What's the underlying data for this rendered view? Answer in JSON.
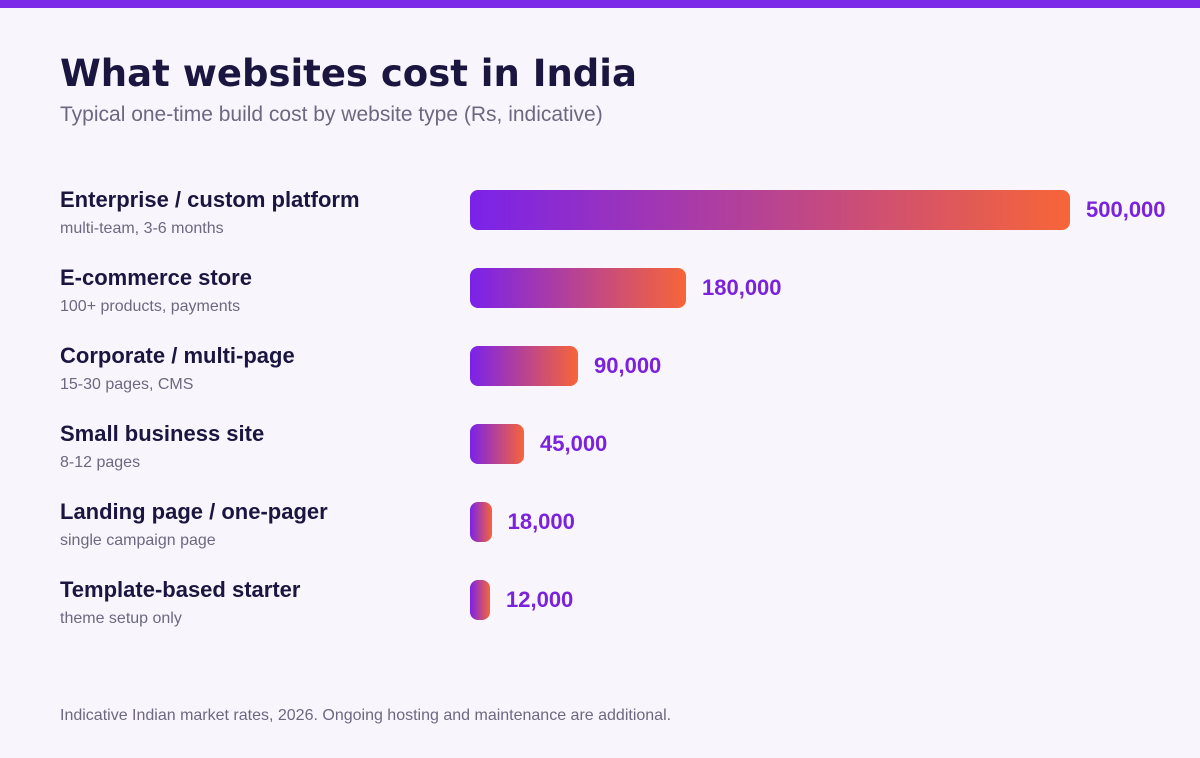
{
  "colors": {
    "accent": "#7c2ae8",
    "gradient_start": "#7a22ea",
    "gradient_end": "#f76538",
    "value_text": "#7a22dc",
    "title_text": "#1b1640",
    "muted_text": "#6c6880",
    "background": "#f8f6fc"
  },
  "chart_data": {
    "type": "bar",
    "orientation": "horizontal",
    "title": "What websites cost in India",
    "subtitle": "Typical one-time build cost by website type (Rs, indicative)",
    "categories": [
      "Enterprise / custom platform",
      "E-commerce store",
      "Corporate / multi-page",
      "Small business site",
      "Landing page / one-pager",
      "Template-based starter"
    ],
    "descriptions": [
      "multi-team, 3-6 months",
      "100+ products, payments",
      "15-30 pages, CMS",
      "8-12 pages",
      "single campaign page",
      "theme setup only"
    ],
    "values": [
      500000,
      180000,
      90000,
      45000,
      18000,
      12000
    ],
    "value_labels": [
      "500,000",
      "180,000",
      "90,000",
      "45,000",
      "18,000",
      "12,000"
    ],
    "xlim": [
      0,
      500000
    ],
    "grid": false,
    "legend": "none",
    "footnote": "Indicative Indian market rates, 2026. Ongoing hosting and maintenance are additional."
  }
}
